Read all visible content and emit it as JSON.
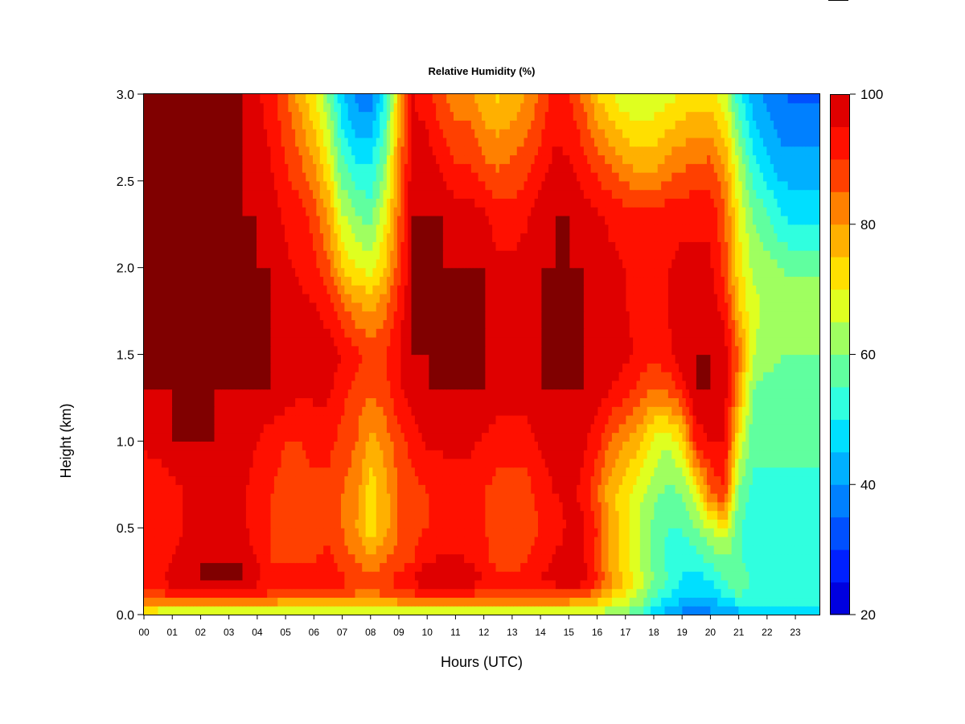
{
  "chart_data": {
    "type": "heatmap",
    "title": "Relative Humidity (%)",
    "xlabel": "Hours (UTC)",
    "ylabel": "Height (km)",
    "x_tick_labels": [
      "00",
      "01",
      "02",
      "03",
      "04",
      "05",
      "06",
      "07",
      "08",
      "09",
      "10",
      "11",
      "12",
      "13",
      "14",
      "15",
      "16",
      "17",
      "18",
      "19",
      "20",
      "21",
      "22",
      "23"
    ],
    "x_ticks": [
      0,
      1,
      2,
      3,
      4,
      5,
      6,
      7,
      8,
      9,
      10,
      11,
      12,
      13,
      14,
      15,
      16,
      17,
      18,
      19,
      20,
      21,
      22,
      23
    ],
    "xlim": [
      0,
      23.85
    ],
    "y_tick_labels": [
      "0.0",
      "0.5",
      "1.0",
      "1.5",
      "2.0",
      "2.5",
      "3.0"
    ],
    "y_ticks": [
      0.0,
      0.5,
      1.0,
      1.5,
      2.0,
      2.5,
      3.0
    ],
    "ylim": [
      0,
      3.0
    ],
    "hours": [
      0,
      0.5,
      1,
      1.5,
      2,
      2.5,
      3,
      3.5,
      4,
      4.5,
      5,
      5.5,
      6,
      6.5,
      7,
      7.5,
      8,
      8.5,
      9,
      9.5,
      10,
      10.5,
      11,
      11.5,
      12,
      12.5,
      13,
      13.5,
      14,
      14.5,
      15,
      15.5,
      16,
      16.5,
      17,
      17.5,
      18,
      18.5,
      19,
      19.5,
      20,
      20.5,
      21,
      21.5,
      22,
      22.5,
      23,
      23.5,
      23.85
    ],
    "heights_km": [
      0.0,
      0.05,
      0.1,
      0.2,
      0.3,
      0.5,
      0.7,
      1.0,
      1.3,
      1.5,
      1.8,
      2.0,
      2.3,
      2.6,
      3.0
    ],
    "values": [
      [
        68,
        66,
        65,
        63,
        62,
        62,
        62,
        62,
        62,
        63,
        63,
        63,
        62,
        63,
        63,
        62,
        62,
        62,
        62,
        62,
        63,
        63,
        63,
        62,
        62,
        62,
        62,
        63,
        63,
        63,
        63,
        63,
        62,
        60,
        58,
        55,
        45,
        42,
        38,
        36,
        38,
        40,
        42,
        42,
        42,
        42,
        42,
        42,
        42
      ],
      [
        75,
        74,
        73,
        72,
        72,
        72,
        72,
        72,
        72,
        73,
        73,
        73,
        72,
        73,
        74,
        72,
        72,
        72,
        74,
        75,
        75,
        75,
        75,
        75,
        74,
        74,
        74,
        74,
        74,
        74,
        74,
        73,
        72,
        68,
        65,
        60,
        50,
        46,
        42,
        40,
        42,
        45,
        48,
        48,
        48,
        48,
        48,
        48,
        48
      ],
      [
        88,
        88,
        88,
        90,
        90,
        90,
        90,
        90,
        90,
        88,
        86,
        86,
        86,
        86,
        86,
        84,
        82,
        84,
        86,
        88,
        90,
        90,
        90,
        88,
        86,
        86,
        86,
        86,
        86,
        86,
        86,
        84,
        80,
        72,
        68,
        63,
        56,
        50,
        45,
        44,
        45,
        50,
        55,
        52,
        52,
        52,
        52,
        52,
        52
      ],
      [
        92,
        94,
        98,
        100,
        100,
        100,
        100,
        100,
        97,
        92,
        92,
        92,
        92,
        94,
        92,
        88,
        88,
        90,
        92,
        95,
        100,
        100,
        100,
        100,
        95,
        92,
        92,
        94,
        96,
        98,
        100,
        98,
        92,
        82,
        75,
        68,
        60,
        55,
        50,
        48,
        50,
        55,
        58,
        55,
        55,
        55,
        55,
        55,
        55
      ],
      [
        92,
        92,
        96,
        98,
        100,
        100,
        100,
        100,
        95,
        90,
        90,
        90,
        90,
        92,
        88,
        85,
        82,
        85,
        88,
        90,
        95,
        96,
        96,
        95,
        92,
        88,
        88,
        90,
        92,
        96,
        98,
        96,
        88,
        78,
        72,
        65,
        58,
        54,
        50,
        52,
        55,
        58,
        56,
        52,
        52,
        52,
        52,
        52,
        52
      ],
      [
        90,
        90,
        92,
        96,
        98,
        98,
        96,
        96,
        92,
        90,
        88,
        88,
        88,
        88,
        85,
        80,
        72,
        78,
        85,
        88,
        90,
        92,
        92,
        92,
        90,
        88,
        88,
        88,
        90,
        92,
        96,
        96,
        90,
        78,
        72,
        65,
        58,
        55,
        55,
        60,
        65,
        70,
        56,
        52,
        52,
        52,
        52,
        52,
        52
      ],
      [
        90,
        90,
        92,
        96,
        98,
        98,
        96,
        96,
        92,
        90,
        88,
        88,
        88,
        88,
        85,
        82,
        72,
        78,
        85,
        88,
        90,
        92,
        92,
        92,
        90,
        88,
        88,
        88,
        92,
        95,
        96,
        94,
        86,
        76,
        72,
        66,
        62,
        58,
        60,
        68,
        85,
        90,
        58,
        54,
        54,
        54,
        54,
        54,
        54
      ],
      [
        96,
        98,
        100,
        100,
        100,
        100,
        98,
        98,
        95,
        92,
        90,
        90,
        92,
        92,
        88,
        85,
        78,
        82,
        88,
        92,
        96,
        96,
        96,
        96,
        94,
        92,
        92,
        92,
        96,
        98,
        98,
        96,
        92,
        84,
        80,
        76,
        68,
        66,
        72,
        92,
        95,
        95,
        70,
        56,
        56,
        56,
        56,
        56,
        56
      ],
      [
        100,
        100,
        100,
        100,
        100,
        100,
        100,
        100,
        100,
        100,
        98,
        96,
        96,
        96,
        92,
        88,
        86,
        88,
        94,
        98,
        100,
        100,
        100,
        100,
        100,
        98,
        98,
        98,
        100,
        100,
        100,
        100,
        98,
        95,
        92,
        88,
        84,
        86,
        92,
        100,
        100,
        98,
        80,
        60,
        58,
        58,
        58,
        58,
        58
      ],
      [
        100,
        100,
        100,
        100,
        100,
        100,
        100,
        100,
        100,
        100,
        100,
        98,
        98,
        98,
        95,
        92,
        88,
        90,
        95,
        100,
        100,
        100,
        100,
        100,
        100,
        100,
        100,
        100,
        100,
        100,
        100,
        100,
        100,
        98,
        96,
        94,
        92,
        94,
        98,
        100,
        100,
        98,
        85,
        66,
        62,
        60,
        60,
        60,
        60
      ],
      [
        100,
        100,
        100,
        100,
        100,
        100,
        100,
        100,
        100,
        100,
        98,
        96,
        95,
        92,
        85,
        80,
        78,
        82,
        92,
        100,
        100,
        100,
        100,
        100,
        100,
        98,
        98,
        98,
        100,
        100,
        100,
        100,
        98,
        96,
        95,
        94,
        94,
        95,
        98,
        98,
        98,
        92,
        75,
        66,
        64,
        64,
        64,
        64,
        64
      ],
      [
        100,
        100,
        100,
        100,
        100,
        100,
        100,
        100,
        100,
        100,
        96,
        94,
        92,
        86,
        75,
        70,
        68,
        75,
        88,
        100,
        100,
        100,
        100,
        100,
        100,
        96,
        96,
        98,
        100,
        100,
        100,
        100,
        98,
        96,
        95,
        94,
        94,
        95,
        96,
        96,
        96,
        88,
        72,
        64,
        62,
        60,
        58,
        58,
        58
      ],
      [
        100,
        100,
        100,
        100,
        100,
        100,
        100,
        100,
        100,
        98,
        94,
        92,
        88,
        80,
        66,
        60,
        58,
        68,
        85,
        100,
        100,
        100,
        98,
        98,
        96,
        92,
        92,
        94,
        98,
        100,
        100,
        98,
        96,
        94,
        93,
        92,
        92,
        93,
        94,
        94,
        94,
        86,
        70,
        60,
        56,
        50,
        48,
        48,
        48
      ],
      [
        100,
        100,
        100,
        100,
        100,
        100,
        100,
        100,
        98,
        95,
        90,
        86,
        80,
        70,
        56,
        50,
        50,
        60,
        82,
        98,
        98,
        94,
        90,
        90,
        86,
        84,
        86,
        88,
        92,
        96,
        96,
        92,
        88,
        84,
        80,
        78,
        78,
        82,
        84,
        85,
        86,
        80,
        64,
        52,
        46,
        42,
        42,
        42,
        42
      ],
      [
        100,
        100,
        100,
        100,
        100,
        100,
        100,
        100,
        96,
        92,
        86,
        78,
        70,
        60,
        45,
        38,
        36,
        50,
        75,
        95,
        92,
        86,
        82,
        82,
        76,
        74,
        76,
        80,
        86,
        92,
        90,
        84,
        75,
        70,
        66,
        65,
        66,
        68,
        70,
        72,
        72,
        66,
        52,
        42,
        38,
        35,
        34,
        34,
        34
      ]
    ],
    "colorbar": {
      "min": 20,
      "max": 100,
      "tick_labels": [
        "100",
        "80",
        "60",
        "40",
        "20"
      ],
      "ticks": [
        100,
        80,
        60,
        40,
        20
      ],
      "levels": [
        20,
        25,
        30,
        35,
        40,
        45,
        50,
        55,
        60,
        65,
        70,
        75,
        80,
        85,
        90,
        95,
        100
      ],
      "colors": [
        "#00008F",
        "#0000DF",
        "#0020FF",
        "#0050FF",
        "#0080FF",
        "#00B0FF",
        "#00DFFF",
        "#30FFDF",
        "#60FF9F",
        "#9FFF60",
        "#DFFF20",
        "#FFDF00",
        "#FFB000",
        "#FF8000",
        "#FF4000",
        "#FF1000",
        "#DF0000",
        "#800000"
      ]
    }
  }
}
